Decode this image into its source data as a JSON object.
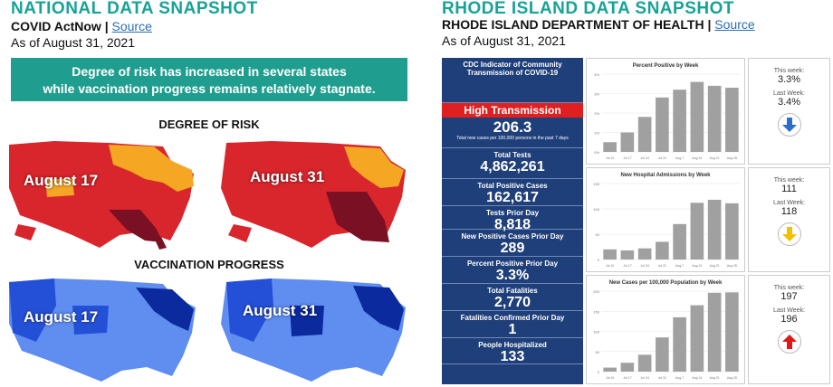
{
  "national": {
    "title": "NATIONAL DATA SNAPSHOT",
    "source_org": "COVID ActNow |",
    "source_link": "Source",
    "as_of": "As of August 31, 2021",
    "banner_line1": "Degree of risk has increased in several states",
    "banner_line2": "while vaccination progress remains relatively stagnate.",
    "section_risk": "DEGREE OF RISK",
    "section_vax": "VACCINATION PROGRESS",
    "map_labels": [
      "August 17",
      "August 31",
      "August 17",
      "August 31"
    ],
    "colors": {
      "risk_red": "#d9252c",
      "risk_orange": "#f5a623",
      "risk_dark": "#7a1024",
      "vax_dark": "#0a2a9e",
      "vax_mid": "#2450d8",
      "vax_light": "#5f8ef0"
    }
  },
  "ri": {
    "title": "RHODE ISLAND DATA SNAPSHOT",
    "source_org": "RHODE ISLAND DEPARTMENT OF HEALTH |",
    "source_link": "Source",
    "as_of": "As of August 31, 2021",
    "cdc_heading": "CDC Indicator of Community Transmission of COVID-19",
    "level": "High Transmission",
    "cases_per_100k": "206.3",
    "cases_per_100k_label": "Total new cases per 100,000 persons in the past 7 days",
    "stats": [
      {
        "label": "Total Tests",
        "value": "4,862,261"
      },
      {
        "label": "Total Positive Cases",
        "value": "162,617"
      },
      {
        "label": "Tests Prior Day",
        "value": "8,818"
      },
      {
        "label": "New Positive Cases Prior Day",
        "value": "289"
      },
      {
        "label": "Percent Positive Prior Day",
        "value": "3.3%"
      },
      {
        "label": "Total Fatalities",
        "value": "2,770"
      },
      {
        "label": "Fatalities Confirmed Prior Day",
        "value": "1"
      },
      {
        "label": "People Hospitalized",
        "value": "133"
      }
    ],
    "this_week_label": "This week:",
    "last_week_label": "Last Week:",
    "chart_weeks": [
      "Jul 10",
      "Jul 17",
      "Jul 24",
      "Jul 31",
      "Aug 7",
      "Aug 14",
      "Aug 21",
      "Aug 28"
    ]
  },
  "chart_data": [
    {
      "type": "bar",
      "title": "Percent Positive by Week",
      "categories": [
        "Jul 10",
        "Jul 17",
        "Jul 24",
        "Jul 31",
        "Aug 7",
        "Aug 14",
        "Aug 21",
        "Aug 28"
      ],
      "values": [
        0.5,
        1.0,
        1.8,
        2.8,
        3.2,
        3.6,
        3.4,
        3.3
      ],
      "ylim": [
        0,
        4
      ],
      "yticks": [
        "0%",
        "1%",
        "2%",
        "3%",
        "4%"
      ],
      "this_week": "3.3%",
      "last_week": "3.4%",
      "trend": "down",
      "color": "#a0a0a0"
    },
    {
      "type": "bar",
      "title": "New Hospital Admissions by Week",
      "categories": [
        "Jul 10",
        "Jul 17",
        "Jul 24",
        "Jul 31",
        "Aug 7",
        "Aug 14",
        "Aug 21",
        "Aug 28"
      ],
      "values": [
        20,
        18,
        22,
        35,
        70,
        112,
        118,
        111
      ],
      "ylim": [
        0,
        150
      ],
      "yticks": [
        "0",
        "50",
        "100",
        "150"
      ],
      "this_week": "111",
      "last_week": "118",
      "trend": "down",
      "color": "#a0a0a0"
    },
    {
      "type": "bar",
      "title": "New Cases per 100,000 Population by Week",
      "categories": [
        "Jul 10",
        "Jul 17",
        "Jul 24",
        "Jul 31",
        "Aug 7",
        "Aug 14",
        "Aug 21",
        "Aug 28"
      ],
      "values": [
        10,
        22,
        42,
        85,
        135,
        165,
        196,
        197
      ],
      "ylim": [
        0,
        200
      ],
      "yticks": [
        "0",
        "50",
        "100",
        "150",
        "200"
      ],
      "this_week": "197",
      "last_week": "196",
      "trend": "up",
      "color": "#a0a0a0"
    }
  ]
}
